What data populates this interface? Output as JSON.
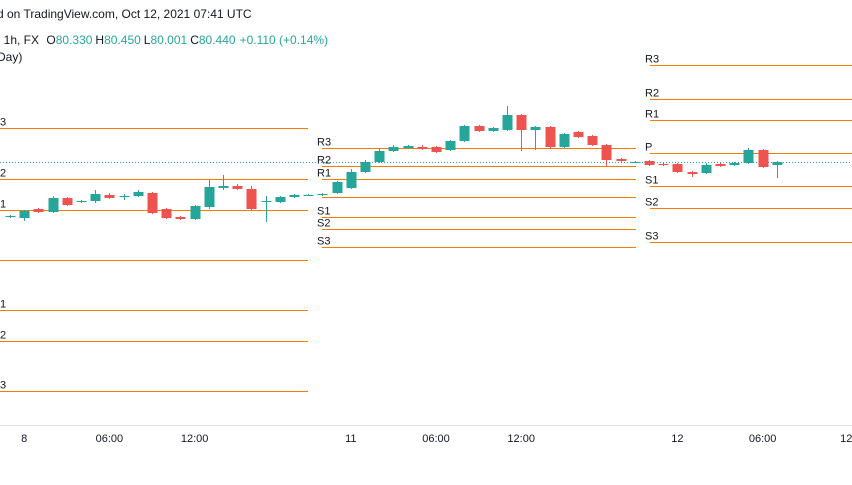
{
  "chart_data": {
    "type": "candlestick",
    "title": "d on TradingView.com, Oct 12, 2021 07:41 UTC",
    "symbol_info": ", 1h, FX",
    "ohlc": [
      {
        "label": "O",
        "value": "80.330"
      },
      {
        "label": "H",
        "value": "80.450"
      },
      {
        "label": "L",
        "value": "80.001"
      },
      {
        "label": "C",
        "value": "80.440"
      }
    ],
    "change": "+0.110 (+0.14%)",
    "indicator": "Day)",
    "up_color": "#26a69a",
    "down_color": "#ef5350",
    "pivot_color": "#f57c00",
    "ylim": [
      77.82,
      81.77
    ],
    "categories": [
      null,
      "8",
      null,
      null,
      null,
      null,
      null,
      "06:00",
      null,
      null,
      null,
      null,
      null,
      "12:00",
      null,
      null,
      null,
      null,
      null,
      null,
      null,
      null,
      null,
      null,
      "11",
      null,
      null,
      null,
      null,
      null,
      "06:00",
      null,
      null,
      null,
      null,
      null,
      "12:00",
      null,
      null,
      null,
      null,
      null,
      null,
      null,
      null,
      null,
      null,
      "12",
      null,
      null,
      null,
      null,
      null,
      "06:00",
      null,
      null,
      null,
      null,
      null,
      "12:"
    ],
    "open": [
      79.91,
      79.89,
      79.98,
      79.95,
      80.09,
      80.05,
      80.06,
      80.12,
      80.1,
      80.11,
      80.14,
      79.98,
      79.9,
      79.88,
      80.0,
      80.19,
      80.21,
      80.18,
      80.05,
      80.05,
      80.1,
      80.12,
      80.12,
      80.14,
      80.19,
      80.35,
      80.45,
      80.56,
      80.59,
      80.6,
      80.6,
      80.57,
      80.66,
      80.81,
      80.76,
      80.77,
      80.92,
      80.77,
      80.8,
      80.6,
      80.75,
      80.71,
      80.62,
      80.48,
      80.45,
      80.46,
      80.43,
      80.43,
      80.35,
      80.34,
      80.43,
      80.42,
      80.44,
      80.57,
      80.42,
      null,
      null,
      null,
      null,
      null
    ],
    "high": [
      79.92,
      79.97,
      79.99,
      80.11,
      80.1,
      80.07,
      80.17,
      80.14,
      80.13,
      80.17,
      80.15,
      79.99,
      79.91,
      80.02,
      80.27,
      80.32,
      80.23,
      80.21,
      80.11,
      80.11,
      80.13,
      80.13,
      80.14,
      80.26,
      80.38,
      80.47,
      80.58,
      80.62,
      80.62,
      80.62,
      80.61,
      80.67,
      80.82,
      80.82,
      80.8,
      81.01,
      80.93,
      80.81,
      80.81,
      80.74,
      80.76,
      80.72,
      80.63,
      80.49,
      80.46,
      80.47,
      80.44,
      80.44,
      80.36,
      80.44,
      80.44,
      80.45,
      80.59,
      80.58,
      80.46,
      null,
      null,
      null,
      null,
      null
    ],
    "low": [
      79.89,
      79.86,
      79.94,
      79.94,
      80.01,
      80.04,
      80.04,
      80.08,
      80.07,
      80.1,
      79.93,
      79.88,
      79.87,
      79.87,
      79.98,
      80.17,
      80.17,
      79.97,
      79.85,
      80.04,
      80.09,
      80.11,
      80.11,
      80.13,
      80.18,
      80.34,
      80.44,
      80.55,
      80.58,
      80.57,
      80.54,
      80.56,
      80.65,
      80.75,
      80.75,
      80.76,
      80.56,
      80.57,
      80.58,
      80.59,
      80.69,
      80.61,
      80.41,
      80.45,
      80.44,
      80.41,
      80.41,
      80.34,
      80.3,
      80.33,
      80.4,
      80.41,
      80.43,
      80.39,
      80.29,
      null,
      null,
      null,
      null,
      null
    ],
    "close": [
      79.91,
      79.96,
      79.95,
      80.09,
      80.02,
      80.06,
      80.13,
      80.09,
      80.11,
      80.15,
      79.94,
      79.89,
      79.88,
      80.01,
      80.2,
      80.21,
      80.18,
      79.98,
      80.06,
      80.1,
      80.12,
      80.12,
      80.13,
      80.25,
      80.35,
      80.45,
      80.56,
      80.6,
      80.61,
      80.58,
      80.55,
      80.66,
      80.81,
      80.76,
      80.79,
      80.92,
      80.77,
      80.8,
      80.6,
      80.73,
      80.7,
      80.62,
      80.47,
      80.46,
      80.45,
      80.42,
      80.42,
      80.35,
      80.33,
      80.42,
      80.41,
      80.44,
      80.57,
      80.4,
      80.45,
      null,
      null,
      null,
      null,
      null
    ],
    "pivots": [
      {
        "labels": [
          "3",
          "2",
          "1",
          null,
          "1",
          "2",
          "3"
        ],
        "values": [
          80.79,
          80.28,
          79.97,
          79.47,
          78.97,
          78.66,
          78.16
        ]
      },
      {
        "labels": [
          "R3",
          "R2",
          "R1",
          null,
          "S1",
          "S2",
          "S3"
        ],
        "values": [
          80.59,
          80.41,
          80.28,
          80.1,
          79.9,
          79.78,
          79.6
        ]
      },
      {
        "labels": [
          "R3",
          "R2",
          "R1",
          "P",
          "S1",
          "S2",
          "S3"
        ],
        "values": [
          81.42,
          81.08,
          80.87,
          80.54,
          80.21,
          79.99,
          79.65
        ]
      }
    ]
  }
}
